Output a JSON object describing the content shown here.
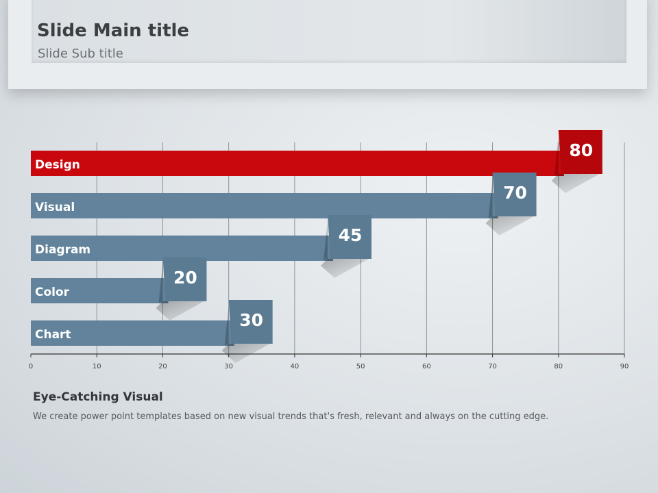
{
  "slide": {
    "title": "Slide Main title",
    "subtitle": "Slide Sub title"
  },
  "caption": {
    "title": "Eye-Catching Visual",
    "text": "We create power point templates based on new visual trends that's fresh, relevant and always on the cutting edge."
  },
  "chart_data": {
    "type": "bar",
    "orientation": "horizontal",
    "categories": [
      "Design",
      "Visual",
      "Diagram",
      "Color",
      "Chart"
    ],
    "values": [
      80,
      70,
      45,
      20,
      30
    ],
    "xlim": [
      0,
      90
    ],
    "x_ticks": [
      0,
      10,
      20,
      30,
      40,
      50,
      60,
      70,
      80,
      90
    ],
    "grid": true,
    "legend": "none",
    "title": "",
    "xlabel": "",
    "ylabel": "",
    "colors": {
      "highlight": "#c8080d",
      "highlight_tag": "#b5070b",
      "default": "#62839b",
      "default_tag": "#5a7b92"
    },
    "highlight_index": 0
  }
}
